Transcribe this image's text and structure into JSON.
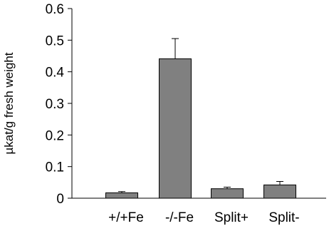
{
  "chart_data": {
    "type": "bar",
    "title": "",
    "xlabel": "",
    "ylabel": "µkat/g fresh weight",
    "categories": [
      "+/+Fe",
      "-/-Fe",
      "Split+",
      "Split-"
    ],
    "values": [
      0.017,
      0.441,
      0.03,
      0.042
    ],
    "error_upper": [
      0.021,
      0.505,
      0.035,
      0.053
    ],
    "ylim": [
      0,
      0.6
    ],
    "yticks": [
      "0",
      "0.1",
      "0.2",
      "0.3",
      "0.4",
      "0.5",
      "0.6"
    ],
    "grid": false,
    "legend": "none",
    "colors": {
      "bar_fill": "#808080",
      "bar_stroke": "#000000",
      "axis": "#000000"
    }
  }
}
